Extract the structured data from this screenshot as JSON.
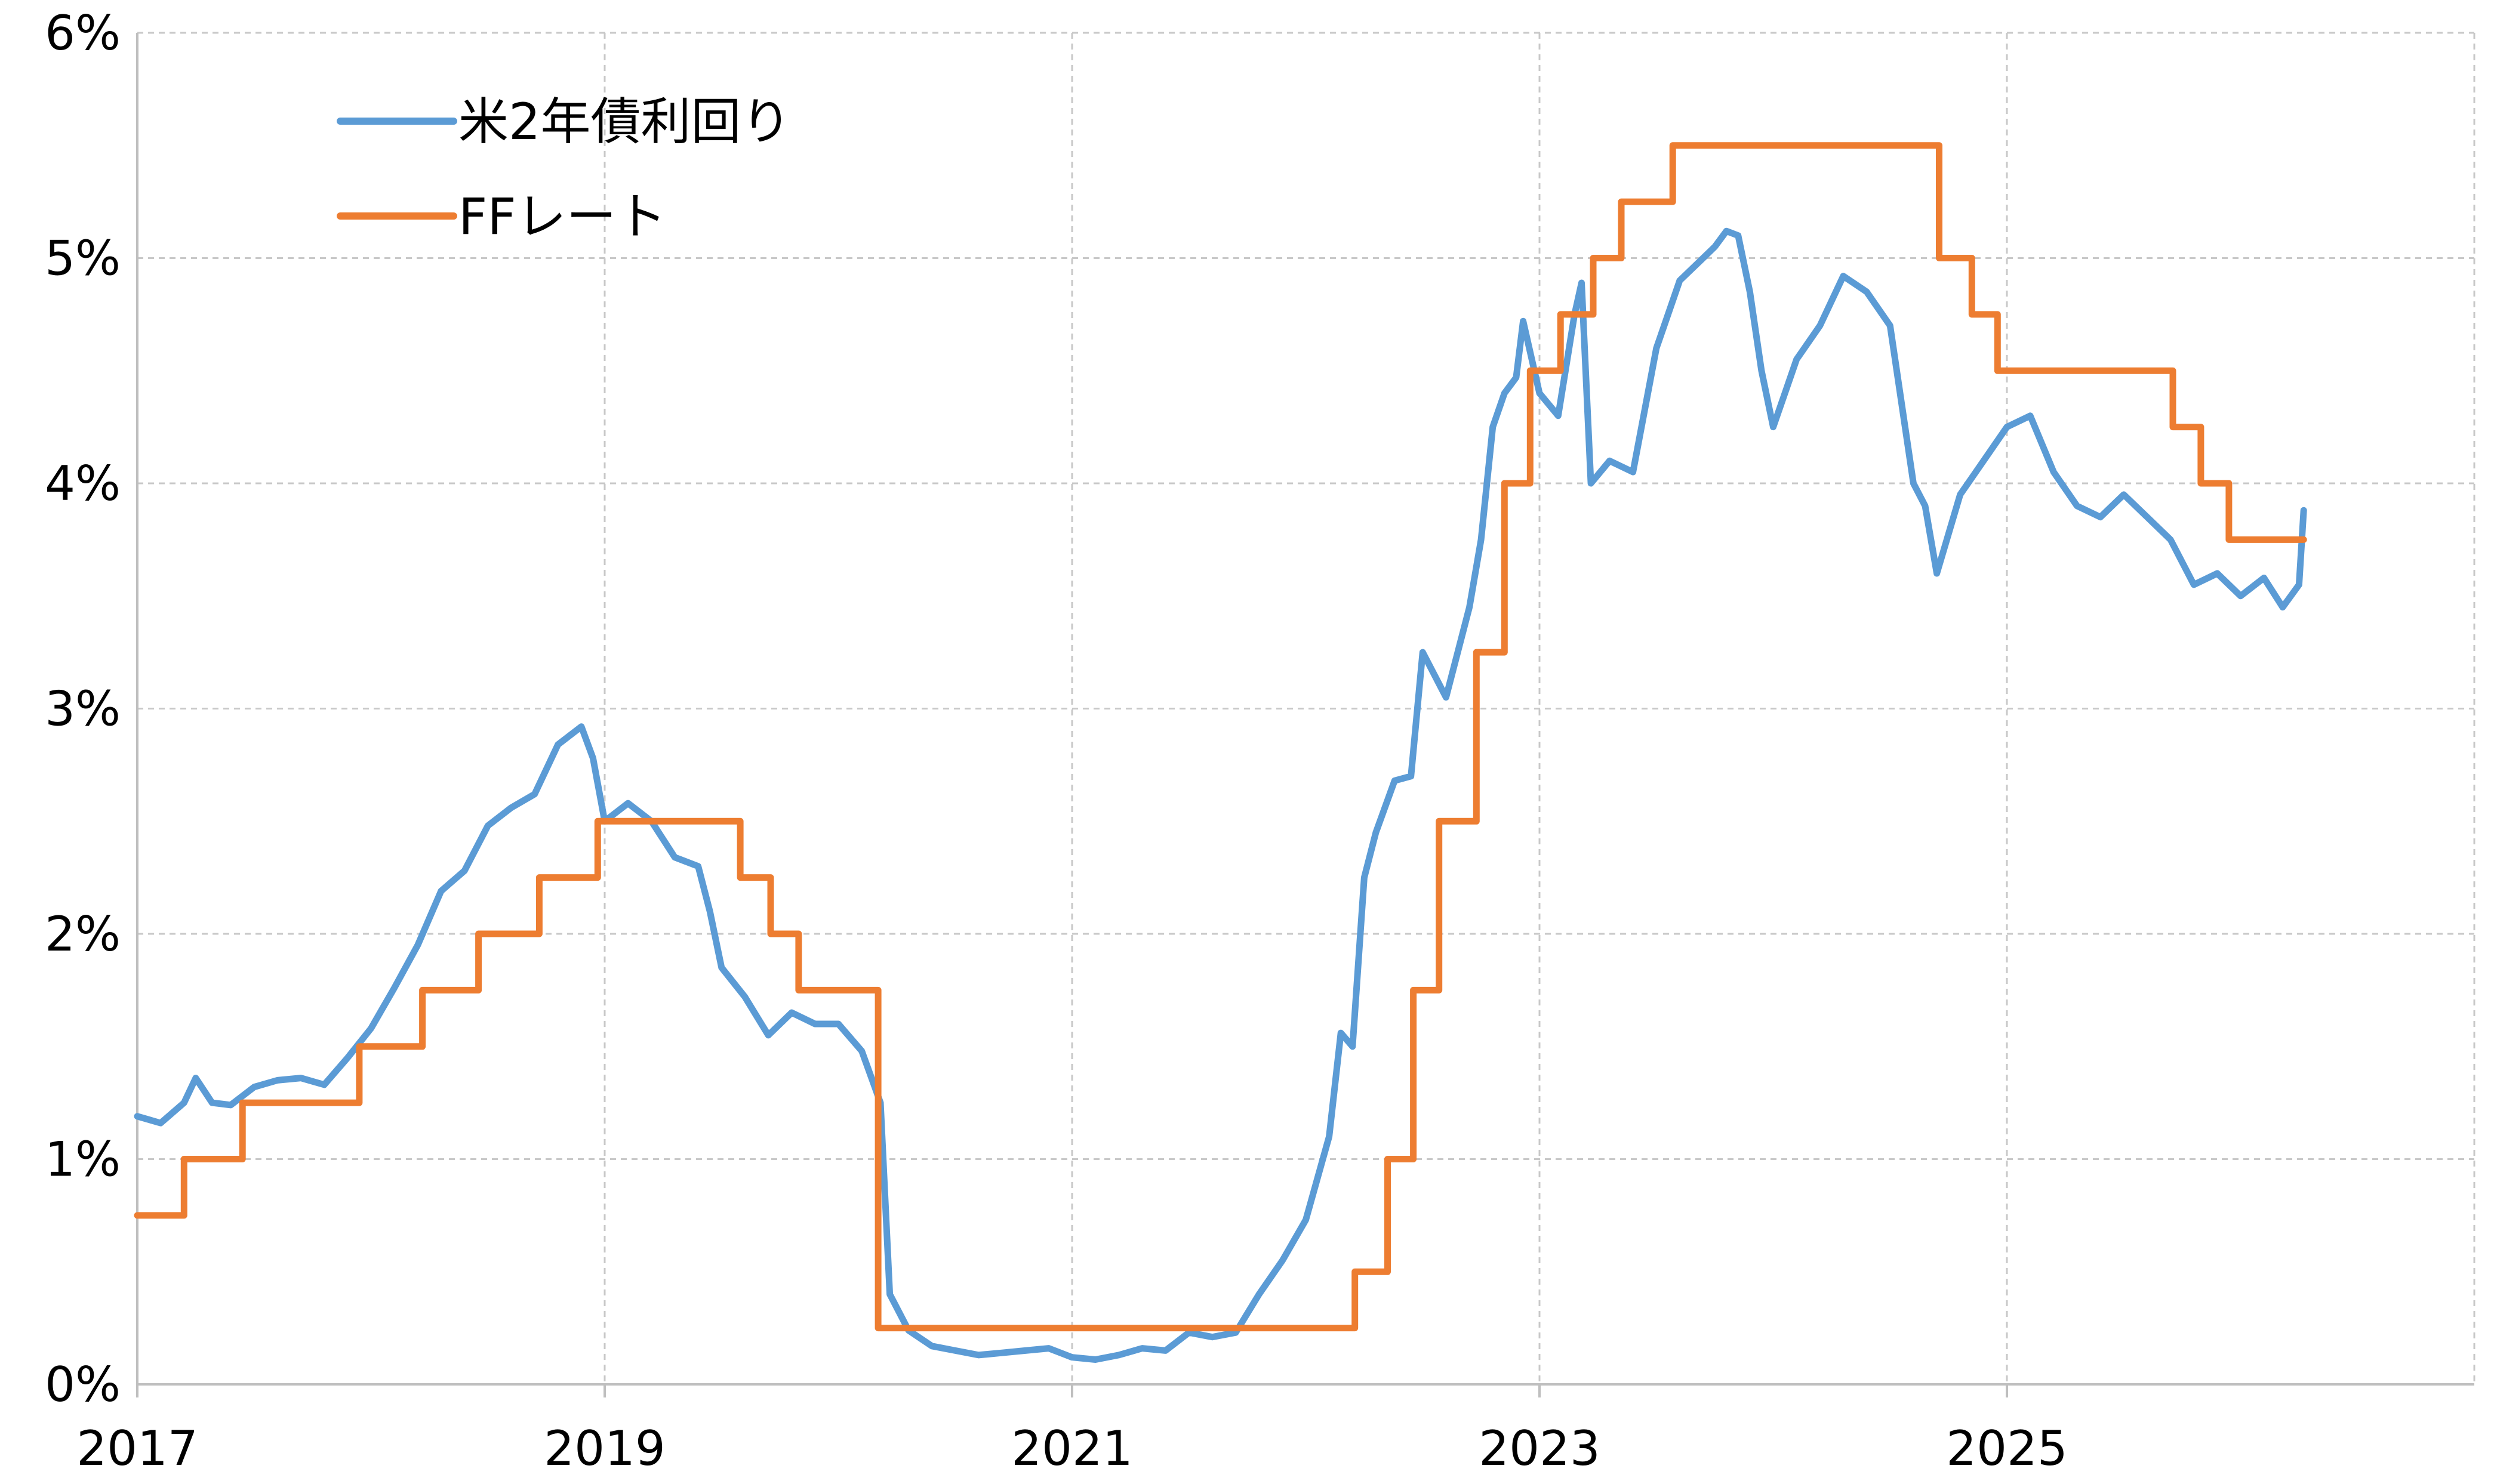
{
  "chart_data": {
    "type": "line",
    "title": "",
    "xlabel": "",
    "ylabel": "",
    "xlim": [
      2017.0,
      2027.0
    ],
    "ylim": [
      0,
      6
    ],
    "x_ticks": [
      2017,
      2019,
      2021,
      2023,
      2025
    ],
    "x_tick_labels": [
      "2017",
      "2019",
      "2021",
      "2023",
      "2025"
    ],
    "y_ticks": [
      0,
      1,
      2,
      3,
      4,
      5,
      6
    ],
    "y_tick_labels": [
      "0%",
      "1%",
      "2%",
      "3%",
      "4%",
      "5%",
      "6%"
    ],
    "grid": true,
    "legend_position": "top-left",
    "series": [
      {
        "name": "米2年債利回り",
        "color": "#5b9bd5",
        "points": [
          [
            2017.0,
            1.19
          ],
          [
            2017.1,
            1.16
          ],
          [
            2017.2,
            1.25
          ],
          [
            2017.25,
            1.36
          ],
          [
            2017.32,
            1.25
          ],
          [
            2017.4,
            1.24
          ],
          [
            2017.5,
            1.32
          ],
          [
            2017.6,
            1.35
          ],
          [
            2017.7,
            1.36
          ],
          [
            2017.8,
            1.33
          ],
          [
            2017.9,
            1.45
          ],
          [
            2018.0,
            1.58
          ],
          [
            2018.1,
            1.76
          ],
          [
            2018.2,
            1.95
          ],
          [
            2018.3,
            2.19
          ],
          [
            2018.4,
            2.28
          ],
          [
            2018.5,
            2.48
          ],
          [
            2018.6,
            2.56
          ],
          [
            2018.7,
            2.62
          ],
          [
            2018.8,
            2.84
          ],
          [
            2018.9,
            2.92
          ],
          [
            2018.95,
            2.78
          ],
          [
            2019.0,
            2.5
          ],
          [
            2019.1,
            2.58
          ],
          [
            2019.2,
            2.5
          ],
          [
            2019.3,
            2.34
          ],
          [
            2019.4,
            2.3
          ],
          [
            2019.45,
            2.1
          ],
          [
            2019.5,
            1.85
          ],
          [
            2019.6,
            1.72
          ],
          [
            2019.7,
            1.55
          ],
          [
            2019.8,
            1.65
          ],
          [
            2019.9,
            1.6
          ],
          [
            2020.0,
            1.6
          ],
          [
            2020.1,
            1.48
          ],
          [
            2020.18,
            1.25
          ],
          [
            2020.22,
            0.4
          ],
          [
            2020.3,
            0.24
          ],
          [
            2020.4,
            0.17
          ],
          [
            2020.5,
            0.15
          ],
          [
            2020.6,
            0.13
          ],
          [
            2020.7,
            0.14
          ],
          [
            2020.8,
            0.15
          ],
          [
            2020.9,
            0.16
          ],
          [
            2021.0,
            0.12
          ],
          [
            2021.1,
            0.11
          ],
          [
            2021.2,
            0.13
          ],
          [
            2021.3,
            0.16
          ],
          [
            2021.4,
            0.15
          ],
          [
            2021.5,
            0.23
          ],
          [
            2021.6,
            0.21
          ],
          [
            2021.7,
            0.23
          ],
          [
            2021.8,
            0.4
          ],
          [
            2021.9,
            0.55
          ],
          [
            2022.0,
            0.73
          ],
          [
            2022.1,
            1.1
          ],
          [
            2022.15,
            1.56
          ],
          [
            2022.2,
            1.5
          ],
          [
            2022.25,
            2.25
          ],
          [
            2022.3,
            2.45
          ],
          [
            2022.38,
            2.68
          ],
          [
            2022.45,
            2.7
          ],
          [
            2022.5,
            3.25
          ],
          [
            2022.6,
            3.05
          ],
          [
            2022.7,
            3.45
          ],
          [
            2022.75,
            3.75
          ],
          [
            2022.8,
            4.25
          ],
          [
            2022.85,
            4.4
          ],
          [
            2022.9,
            4.47
          ],
          [
            2022.93,
            4.72
          ],
          [
            2023.0,
            4.4
          ],
          [
            2023.08,
            4.3
          ],
          [
            2023.15,
            4.75
          ],
          [
            2023.18,
            4.89
          ],
          [
            2023.22,
            4.0
          ],
          [
            2023.3,
            4.1
          ],
          [
            2023.4,
            4.05
          ],
          [
            2023.5,
            4.6
          ],
          [
            2023.6,
            4.9
          ],
          [
            2023.7,
            5.0
          ],
          [
            2023.75,
            5.05
          ],
          [
            2023.8,
            5.12
          ],
          [
            2023.85,
            5.1
          ],
          [
            2023.9,
            4.85
          ],
          [
            2023.95,
            4.5
          ],
          [
            2024.0,
            4.25
          ],
          [
            2024.05,
            4.4
          ],
          [
            2024.1,
            4.55
          ],
          [
            2024.2,
            4.7
          ],
          [
            2024.3,
            4.92
          ],
          [
            2024.4,
            4.85
          ],
          [
            2024.5,
            4.7
          ],
          [
            2024.6,
            4.0
          ],
          [
            2024.65,
            3.9
          ],
          [
            2024.7,
            3.6
          ],
          [
            2024.8,
            3.95
          ],
          [
            2024.9,
            4.1
          ],
          [
            2025.0,
            4.25
          ],
          [
            2025.1,
            4.3
          ],
          [
            2025.2,
            4.05
          ],
          [
            2025.3,
            3.9
          ],
          [
            2025.4,
            3.85
          ],
          [
            2025.5,
            3.95
          ],
          [
            2025.6,
            3.85
          ],
          [
            2025.7,
            3.75
          ],
          [
            2025.8,
            3.55
          ],
          [
            2025.9,
            3.6
          ],
          [
            2026.0,
            3.5
          ],
          [
            2026.1,
            3.58
          ],
          [
            2026.18,
            3.45
          ],
          [
            2026.25,
            3.55
          ],
          [
            2026.27,
            3.88
          ]
        ]
      },
      {
        "name": "FFレート",
        "color": "#ed7d31",
        "points": [
          [
            2017.0,
            0.75
          ],
          [
            2017.2,
            0.75
          ],
          [
            2017.2,
            1.0
          ],
          [
            2017.45,
            1.0
          ],
          [
            2017.45,
            1.25
          ],
          [
            2017.95,
            1.25
          ],
          [
            2017.95,
            1.5
          ],
          [
            2018.22,
            1.5
          ],
          [
            2018.22,
            1.75
          ],
          [
            2018.46,
            1.75
          ],
          [
            2018.46,
            2.0
          ],
          [
            2018.72,
            2.0
          ],
          [
            2018.72,
            2.25
          ],
          [
            2018.97,
            2.25
          ],
          [
            2018.97,
            2.5
          ],
          [
            2019.58,
            2.5
          ],
          [
            2019.58,
            2.25
          ],
          [
            2019.71,
            2.25
          ],
          [
            2019.71,
            2.0
          ],
          [
            2019.83,
            2.0
          ],
          [
            2019.83,
            1.75
          ],
          [
            2020.17,
            1.75
          ],
          [
            2020.17,
            0.25
          ],
          [
            2022.21,
            0.25
          ],
          [
            2022.21,
            0.5
          ],
          [
            2022.35,
            0.5
          ],
          [
            2022.35,
            1.0
          ],
          [
            2022.46,
            1.0
          ],
          [
            2022.46,
            1.75
          ],
          [
            2022.57,
            1.75
          ],
          [
            2022.57,
            2.5
          ],
          [
            2022.73,
            2.5
          ],
          [
            2022.73,
            3.25
          ],
          [
            2022.85,
            3.25
          ],
          [
            2022.85,
            4.0
          ],
          [
            2022.96,
            4.0
          ],
          [
            2022.96,
            4.5
          ],
          [
            2023.09,
            4.5
          ],
          [
            2023.09,
            4.75
          ],
          [
            2023.23,
            4.75
          ],
          [
            2023.23,
            5.0
          ],
          [
            2023.35,
            5.0
          ],
          [
            2023.35,
            5.25
          ],
          [
            2023.57,
            5.25
          ],
          [
            2023.57,
            5.5
          ],
          [
            2024.71,
            5.5
          ],
          [
            2024.71,
            5.0
          ],
          [
            2024.85,
            5.0
          ],
          [
            2024.85,
            4.75
          ],
          [
            2024.96,
            4.75
          ],
          [
            2024.96,
            4.5
          ],
          [
            2025.71,
            4.5
          ],
          [
            2025.71,
            4.25
          ],
          [
            2025.83,
            4.25
          ],
          [
            2025.83,
            4.0
          ],
          [
            2025.95,
            4.0
          ],
          [
            2025.95,
            3.75
          ],
          [
            2026.27,
            3.75
          ]
        ]
      }
    ]
  }
}
